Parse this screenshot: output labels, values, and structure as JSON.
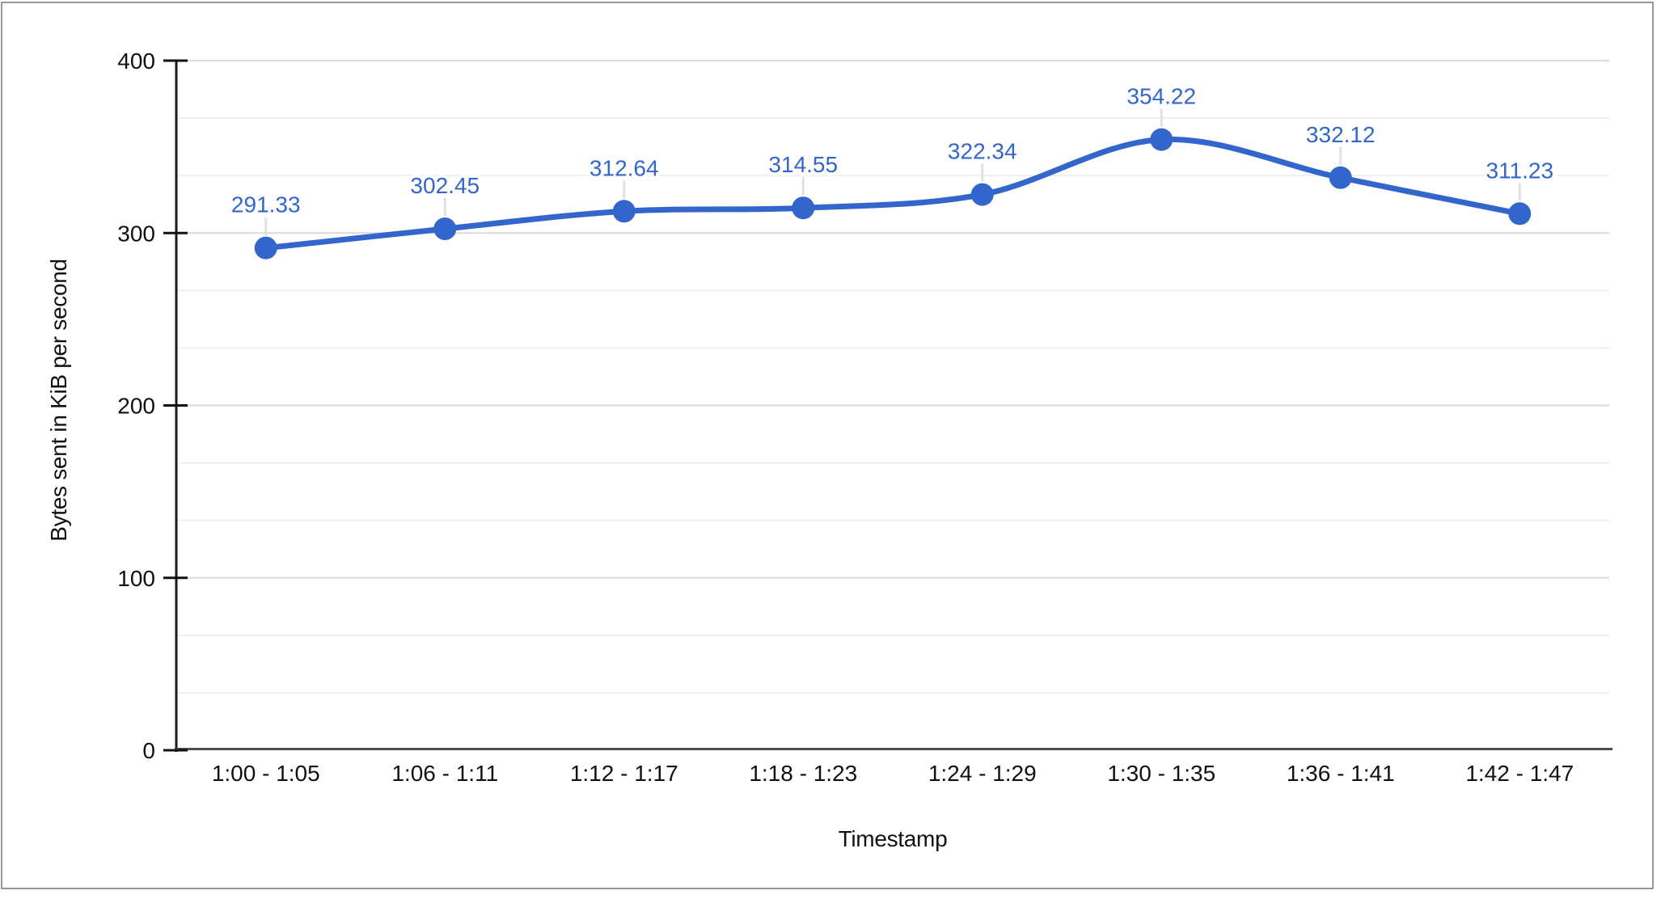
{
  "chart_data": {
    "type": "line",
    "smooth": true,
    "title": "",
    "xlabel": "Timestamp",
    "ylabel": "Bytes sent in KiB per second",
    "categories": [
      "1:00 - 1:05",
      "1:06 - 1:11",
      "1:12 - 1:17",
      "1:18 - 1:23",
      "1:24 - 1:29",
      "1:30 - 1:35",
      "1:36 - 1:41",
      "1:42 - 1:47"
    ],
    "values": [
      291.33,
      302.45,
      312.64,
      314.55,
      322.34,
      354.22,
      332.12,
      311.23
    ],
    "point_labels": [
      "291.33",
      "302.45",
      "312.64",
      "314.55",
      "322.34",
      "354.22",
      "332.12",
      "311.23"
    ],
    "ylim": [
      0,
      400
    ],
    "y_ticks": [
      0,
      100,
      200,
      300,
      400
    ],
    "y_tick_labels": [
      "0",
      "100",
      "200",
      "300",
      "400"
    ],
    "minor_gridlines_between_major": 2,
    "grid": true,
    "legend_position": "none",
    "point_labels_visible": true
  },
  "colors": {
    "series": "#3366cc",
    "point_label_text": "#3366cc",
    "gridline_major": "#dadada",
    "gridline_minor": "#efefef",
    "y_axis_line": "#1a1a1a",
    "x_axis_line": "#4d4d4d",
    "tick_mark": "#111111",
    "axis_text": "#111111",
    "label_connector": "#e0e0e0",
    "frame_border": "#999999",
    "background": "#ffffff"
  }
}
